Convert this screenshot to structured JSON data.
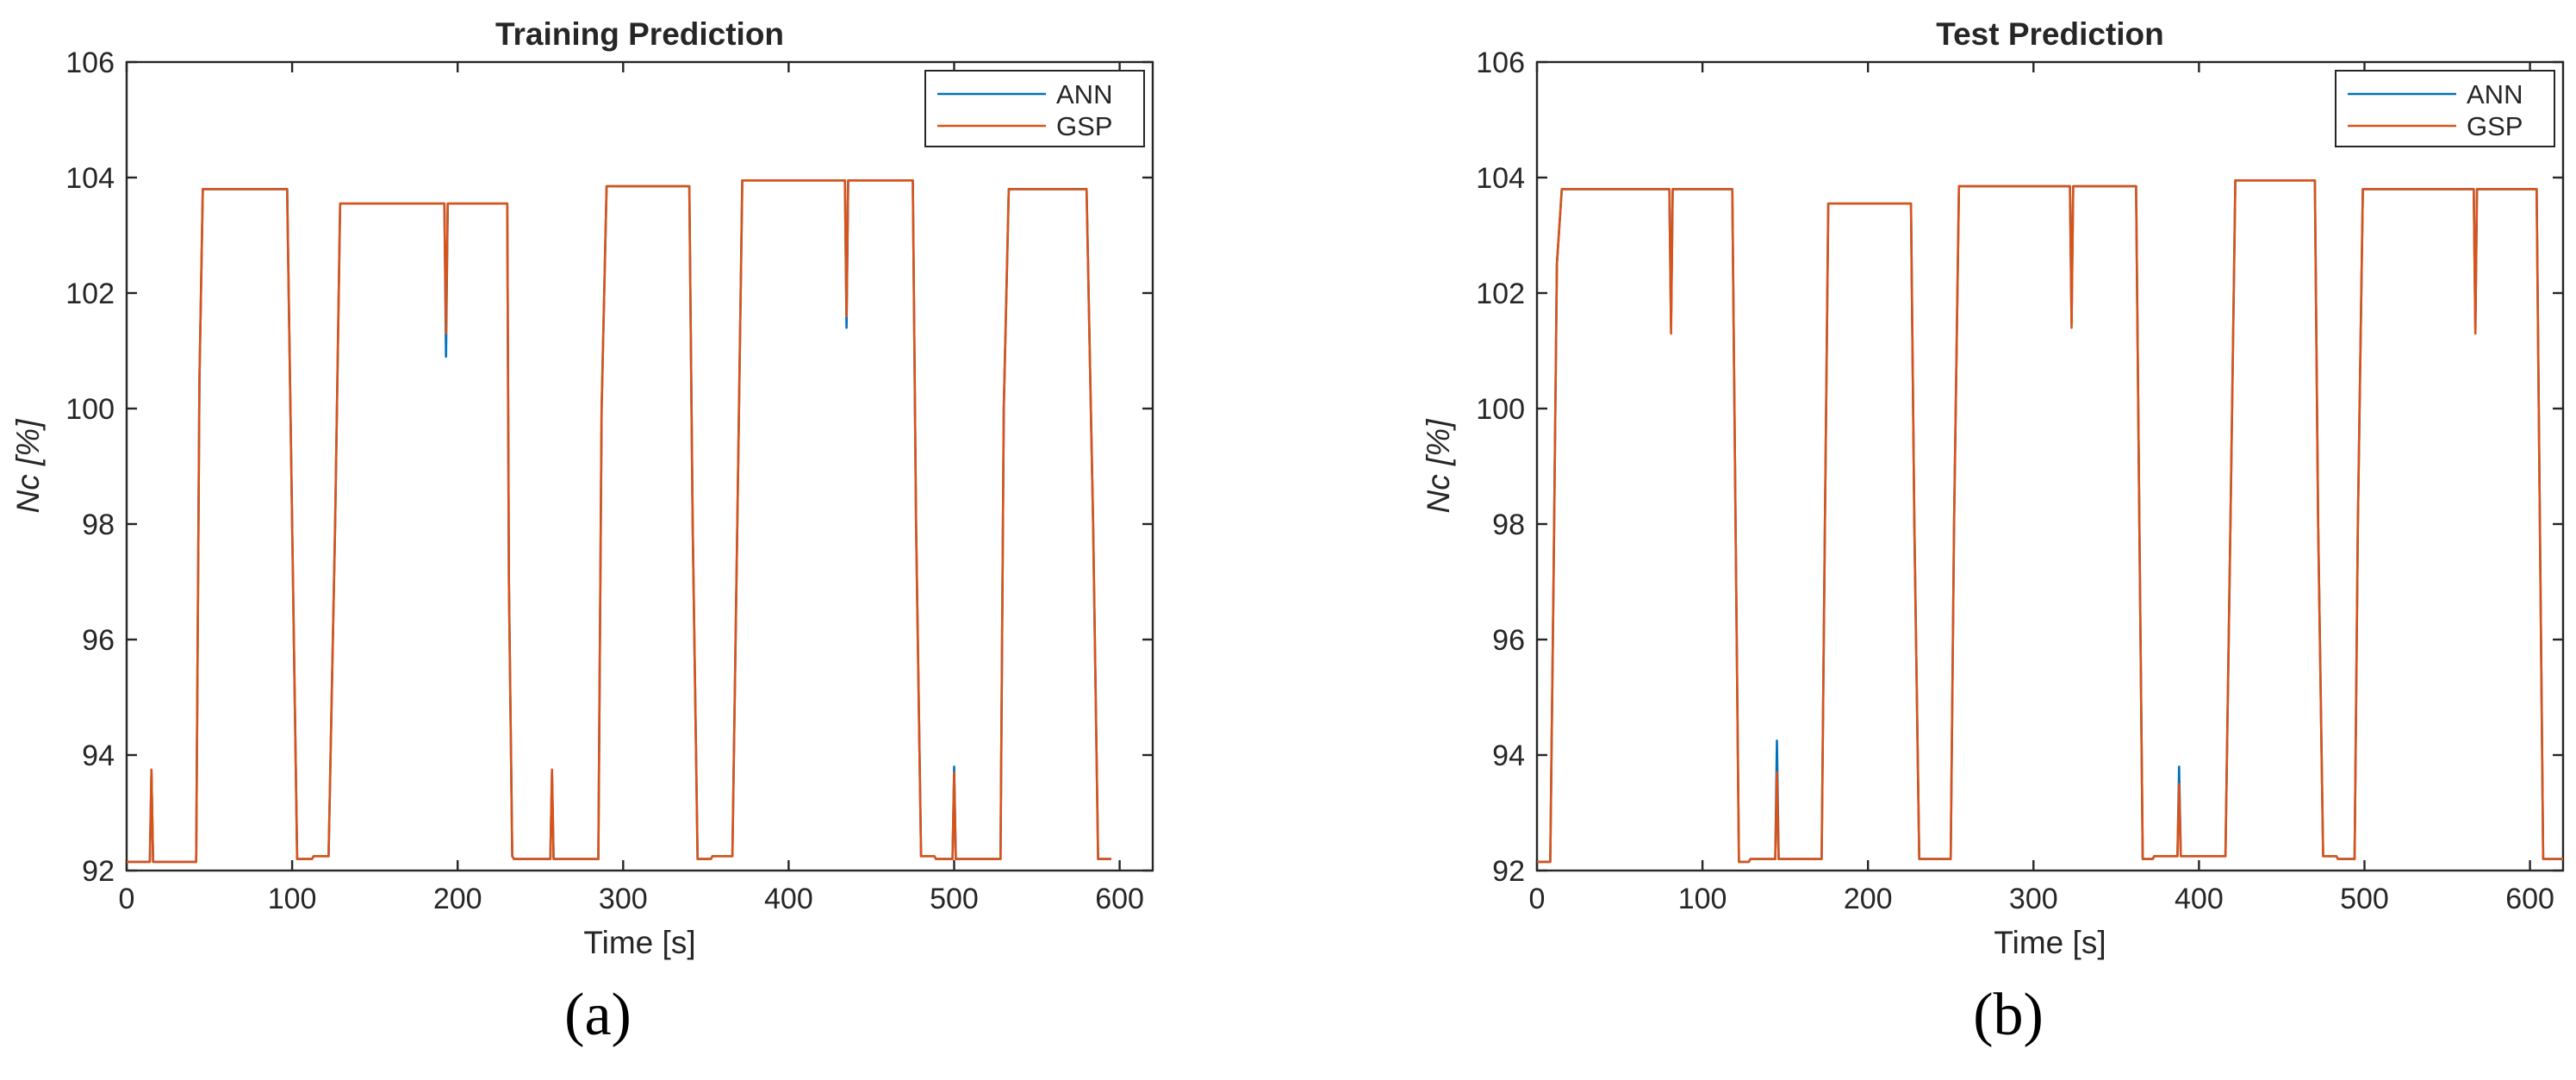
{
  "figure": {
    "panel_labels": [
      "(a)",
      "(b)"
    ]
  },
  "colors": {
    "ANN": "#0072BD",
    "GSP": "#D95319"
  },
  "chart_data": [
    {
      "type": "line",
      "title": "Training Prediction",
      "xlabel": "Time [s]",
      "ylabel": "Nc [%]",
      "xlim": [
        0,
        620
      ],
      "ylim": [
        92,
        106
      ],
      "xticks": [
        0,
        100,
        200,
        300,
        400,
        500,
        600
      ],
      "yticks": [
        92,
        94,
        96,
        98,
        100,
        102,
        104,
        106
      ],
      "grid": false,
      "legend_position": "top-right",
      "series": [
        {
          "name": "ANN",
          "x": [
            0,
            14,
            15,
            16,
            17,
            42,
            44,
            46,
            97,
            100,
            103,
            104,
            112,
            113,
            122,
            126,
            129,
            190,
            192,
            193,
            194,
            195,
            230,
            231,
            233,
            234,
            256,
            257,
            258,
            259,
            285,
            287,
            290,
            340,
            342,
            345,
            347,
            353,
            354,
            366,
            369,
            372,
            433,
            434,
            435,
            436,
            437,
            475,
            477,
            480,
            488,
            489,
            497,
            499,
            500,
            501,
            502,
            528,
            530,
            533,
            580,
            584,
            587,
            595
          ],
          "y": [
            92.15,
            92.15,
            93.7,
            92.15,
            92.15,
            92.15,
            100.5,
            103.8,
            103.8,
            98.0,
            92.2,
            92.2,
            92.2,
            92.25,
            92.25,
            98.0,
            103.55,
            103.55,
            103.55,
            100.9,
            103.55,
            103.55,
            103.55,
            97.0,
            92.25,
            92.2,
            92.2,
            93.7,
            92.2,
            92.2,
            92.2,
            100.0,
            103.85,
            103.85,
            98.0,
            92.2,
            92.2,
            92.2,
            92.25,
            92.25,
            98.0,
            103.95,
            103.95,
            103.95,
            101.4,
            103.95,
            103.95,
            103.95,
            98.0,
            92.25,
            92.25,
            92.2,
            92.2,
            92.2,
            93.8,
            92.2,
            92.2,
            92.2,
            100.0,
            103.8,
            103.8,
            98.0,
            92.2,
            92.2
          ]
        },
        {
          "name": "GSP",
          "x": [
            0,
            14,
            15,
            16,
            17,
            42,
            44,
            46,
            97,
            100,
            103,
            104,
            112,
            113,
            122,
            126,
            129,
            190,
            192,
            193,
            194,
            195,
            230,
            231,
            233,
            234,
            256,
            257,
            258,
            259,
            285,
            287,
            290,
            340,
            342,
            345,
            347,
            353,
            354,
            366,
            369,
            372,
            433,
            434,
            435,
            436,
            437,
            475,
            477,
            480,
            488,
            489,
            497,
            499,
            500,
            501,
            502,
            528,
            530,
            533,
            580,
            584,
            587,
            595
          ],
          "y": [
            92.15,
            92.15,
            93.75,
            92.15,
            92.15,
            92.15,
            100.5,
            103.8,
            103.8,
            98.0,
            92.2,
            92.2,
            92.2,
            92.25,
            92.25,
            98.0,
            103.55,
            103.55,
            103.55,
            101.3,
            103.55,
            103.55,
            103.55,
            97.0,
            92.25,
            92.2,
            92.2,
            93.75,
            92.2,
            92.2,
            92.2,
            100.0,
            103.85,
            103.85,
            98.0,
            92.2,
            92.2,
            92.2,
            92.25,
            92.25,
            98.0,
            103.95,
            103.95,
            103.95,
            101.6,
            103.95,
            103.95,
            103.95,
            98.0,
            92.25,
            92.25,
            92.2,
            92.2,
            92.2,
            93.7,
            92.2,
            92.2,
            92.2,
            100.0,
            103.8,
            103.8,
            98.0,
            92.2,
            92.2
          ]
        }
      ]
    },
    {
      "type": "line",
      "title": "Test Prediction",
      "xlabel": "Time [s]",
      "ylabel": "Nc [%]",
      "xlim": [
        0,
        620
      ],
      "ylim": [
        92,
        106
      ],
      "xticks": [
        0,
        100,
        200,
        300,
        400,
        500,
        600
      ],
      "yticks": [
        92,
        94,
        96,
        98,
        100,
        102,
        104,
        106
      ],
      "grid": false,
      "legend_position": "top-right",
      "series": [
        {
          "name": "ANN",
          "x": [
            0,
            8,
            10,
            12,
            15,
            79,
            80,
            81,
            82,
            118,
            120,
            122,
            128,
            129,
            144,
            145,
            146,
            147,
            172,
            174,
            176,
            226,
            228,
            231,
            232,
            250,
            252,
            255,
            258,
            322,
            323,
            324,
            325,
            362,
            364,
            366,
            372,
            373,
            387,
            388,
            389,
            390,
            416,
            419,
            422,
            470,
            472,
            475,
            483,
            484,
            494,
            496,
            499,
            565,
            566,
            567,
            568,
            604,
            606,
            608,
            620
          ],
          "y": [
            92.15,
            92.15,
            97.0,
            102.5,
            103.8,
            103.8,
            103.8,
            101.4,
            103.8,
            103.8,
            98.0,
            92.15,
            92.15,
            92.2,
            92.2,
            94.25,
            92.2,
            92.2,
            92.2,
            98.0,
            103.55,
            103.55,
            98.0,
            92.2,
            92.2,
            92.2,
            98.0,
            103.85,
            103.85,
            103.85,
            101.5,
            103.85,
            103.85,
            103.85,
            98.0,
            92.2,
            92.2,
            92.25,
            92.25,
            93.8,
            92.25,
            92.25,
            92.25,
            98.0,
            103.95,
            103.95,
            98.0,
            92.25,
            92.25,
            92.2,
            92.2,
            98.0,
            103.8,
            103.8,
            103.8,
            101.4,
            103.8,
            103.8,
            98.0,
            92.2,
            92.2
          ]
        },
        {
          "name": "GSP",
          "x": [
            0,
            8,
            10,
            12,
            15,
            79,
            80,
            81,
            82,
            118,
            120,
            122,
            128,
            129,
            144,
            145,
            146,
            147,
            172,
            174,
            176,
            226,
            228,
            231,
            232,
            250,
            252,
            255,
            258,
            322,
            323,
            324,
            325,
            362,
            364,
            366,
            372,
            373,
            387,
            388,
            389,
            390,
            416,
            419,
            422,
            470,
            472,
            475,
            483,
            484,
            494,
            496,
            499,
            565,
            566,
            567,
            568,
            604,
            606,
            608,
            620
          ],
          "y": [
            92.15,
            92.15,
            97.0,
            102.5,
            103.8,
            103.8,
            103.8,
            101.3,
            103.8,
            103.8,
            98.0,
            92.15,
            92.15,
            92.2,
            92.2,
            93.7,
            92.2,
            92.2,
            92.2,
            98.0,
            103.55,
            103.55,
            98.0,
            92.2,
            92.2,
            92.2,
            98.0,
            103.85,
            103.85,
            103.85,
            101.4,
            103.85,
            103.85,
            103.85,
            98.0,
            92.2,
            92.2,
            92.25,
            92.25,
            93.5,
            92.25,
            92.25,
            92.25,
            98.0,
            103.95,
            103.95,
            98.0,
            92.25,
            92.25,
            92.2,
            92.2,
            98.0,
            103.8,
            103.8,
            103.8,
            101.3,
            103.8,
            103.8,
            98.0,
            92.2,
            92.2
          ]
        }
      ]
    }
  ]
}
